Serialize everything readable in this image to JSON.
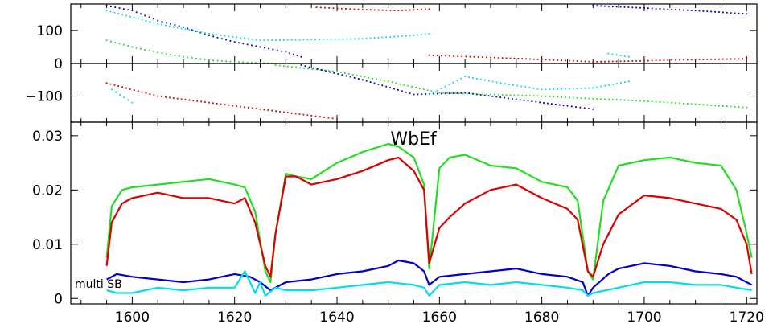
{
  "figure": {
    "title": "WbEf",
    "annotation": "multi SB"
  },
  "colors": {
    "red": "#dd0000",
    "green": "#22dd22",
    "blue": "#0000cc",
    "cyan": "#00ddee",
    "axis": "#000000"
  },
  "chart_data": [
    {
      "type": "scatter",
      "panel": "phase-upper",
      "ylim": [
        0,
        180
      ],
      "xlim": [
        1588,
        1722
      ],
      "yticks": [
        0,
        100
      ],
      "ytick_labels": [
        "0",
        "100"
      ],
      "series": [
        {
          "color": "green",
          "segments": [
            [
              [
                1595,
                70
              ],
              [
                1600,
                50
              ],
              [
                1605,
                33
              ],
              [
                1610,
                20
              ],
              [
                1615,
                10
              ],
              [
                1620,
                5
              ],
              [
                1625,
                2
              ],
              [
                1628,
                0
              ]
            ]
          ]
        },
        {
          "color": "blue",
          "segments": [
            [
              [
                1595,
                175
              ],
              [
                1600,
                160
              ],
              [
                1605,
                130
              ],
              [
                1610,
                110
              ],
              [
                1615,
                85
              ],
              [
                1620,
                65
              ],
              [
                1625,
                50
              ],
              [
                1630,
                35
              ],
              [
                1633,
                20
              ]
            ],
            [
              [
                1690,
                175
              ],
              [
                1700,
                168
              ],
              [
                1710,
                160
              ],
              [
                1720,
                150
              ]
            ]
          ]
        },
        {
          "color": "cyan",
          "segments": [
            [
              [
                1595,
                160
              ],
              [
                1605,
                120
              ],
              [
                1615,
                90
              ],
              [
                1625,
                70
              ],
              [
                1635,
                72
              ],
              [
                1645,
                75
              ],
              [
                1655,
                85
              ],
              [
                1658,
                90
              ]
            ],
            [
              [
                1693,
                30
              ],
              [
                1697,
                20
              ]
            ]
          ]
        },
        {
          "color": "red",
          "segments": [
            [
              [
                1636,
                170
              ],
              [
                1645,
                163
              ],
              [
                1652,
                160
              ],
              [
                1658,
                165
              ]
            ],
            [
              [
                1658,
                25
              ],
              [
                1670,
                18
              ],
              [
                1680,
                12
              ],
              [
                1690,
                5
              ],
              [
                1700,
                8
              ],
              [
                1710,
                12
              ],
              [
                1720,
                14
              ]
            ]
          ]
        }
      ]
    },
    {
      "type": "scatter",
      "panel": "phase-lower",
      "ylim": [
        -180,
        0
      ],
      "xlim": [
        1588,
        1722
      ],
      "yticks": [
        -100
      ],
      "ytick_labels": [
        "−100"
      ],
      "series": [
        {
          "color": "green",
          "segments": [
            [
              [
                1628,
                -5
              ],
              [
                1640,
                -25
              ],
              [
                1650,
                -55
              ],
              [
                1660,
                -90
              ],
              [
                1670,
                -95
              ],
              [
                1680,
                -100
              ],
              [
                1690,
                -108
              ],
              [
                1700,
                -115
              ],
              [
                1710,
                -125
              ],
              [
                1720,
                -135
              ]
            ]
          ]
        },
        {
          "color": "blue",
          "segments": [
            [
              [
                1633,
                -5
              ],
              [
                1645,
                -50
              ],
              [
                1655,
                -95
              ],
              [
                1665,
                -90
              ],
              [
                1675,
                -110
              ],
              [
                1685,
                -130
              ],
              [
                1690,
                -140
              ]
            ]
          ]
        },
        {
          "color": "cyan",
          "segments": [
            [
              [
                1596,
                -80
              ],
              [
                1600,
                -120
              ]
            ],
            [
              [
                1658,
                -95
              ],
              [
                1665,
                -40
              ],
              [
                1672,
                -60
              ],
              [
                1680,
                -80
              ],
              [
                1690,
                -75
              ],
              [
                1697,
                -55
              ]
            ]
          ]
        },
        {
          "color": "red",
          "segments": [
            [
              [
                1595,
                -60
              ],
              [
                1605,
                -100
              ],
              [
                1615,
                -120
              ],
              [
                1625,
                -140
              ],
              [
                1635,
                -160
              ],
              [
                1640,
                -170
              ]
            ]
          ]
        }
      ]
    },
    {
      "type": "line",
      "panel": "amplitude",
      "ylim": [
        -0.001,
        0.0325
      ],
      "xlim": [
        1588,
        1722
      ],
      "yticks": [
        0,
        0.01,
        0.02,
        0.03
      ],
      "ytick_labels": [
        "0",
        "0.01",
        "0.02",
        "0.03"
      ],
      "xticks": [
        1600,
        1620,
        1640,
        1660,
        1680,
        1700,
        1720
      ],
      "xtick_labels": [
        "1600",
        "1620",
        "1640",
        "1660",
        "1680",
        "1700",
        "1720"
      ],
      "series": [
        {
          "color": "green",
          "x": [
            1595,
            1596,
            1598,
            1600,
            1605,
            1610,
            1615,
            1620,
            1622,
            1624,
            1626,
            1627,
            1628,
            1630,
            1632,
            1635,
            1640,
            1645,
            1650,
            1652,
            1655,
            1657,
            1658,
            1660,
            1662,
            1665,
            1670,
            1675,
            1680,
            1685,
            1687,
            1689,
            1690,
            1692,
            1695,
            1700,
            1705,
            1710,
            1715,
            1718,
            1720,
            1721
          ],
          "y": [
            0.0075,
            0.017,
            0.02,
            0.0205,
            0.021,
            0.0215,
            0.022,
            0.021,
            0.0205,
            0.016,
            0.005,
            0.003,
            0.012,
            0.023,
            0.0225,
            0.022,
            0.025,
            0.027,
            0.0285,
            0.028,
            0.026,
            0.021,
            0.0055,
            0.024,
            0.026,
            0.0265,
            0.0245,
            0.024,
            0.0215,
            0.0205,
            0.018,
            0.005,
            0.0035,
            0.018,
            0.0245,
            0.0255,
            0.026,
            0.025,
            0.0245,
            0.02,
            0.012,
            0.0075
          ]
        },
        {
          "color": "red",
          "x": [
            1595,
            1596,
            1598,
            1600,
            1605,
            1610,
            1615,
            1620,
            1622,
            1624,
            1626,
            1627,
            1628,
            1630,
            1632,
            1635,
            1640,
            1645,
            1650,
            1652,
            1655,
            1657,
            1658,
            1660,
            1662,
            1665,
            1670,
            1675,
            1680,
            1685,
            1687,
            1689,
            1690,
            1692,
            1695,
            1700,
            1705,
            1710,
            1715,
            1718,
            1720,
            1721
          ],
          "y": [
            0.006,
            0.014,
            0.0175,
            0.0185,
            0.0195,
            0.0185,
            0.0185,
            0.0175,
            0.0185,
            0.014,
            0.006,
            0.004,
            0.012,
            0.0225,
            0.0225,
            0.021,
            0.022,
            0.0235,
            0.0255,
            0.026,
            0.0235,
            0.02,
            0.0065,
            0.013,
            0.015,
            0.0175,
            0.02,
            0.021,
            0.0185,
            0.0165,
            0.0145,
            0.005,
            0.004,
            0.01,
            0.0155,
            0.019,
            0.0185,
            0.0175,
            0.0165,
            0.0145,
            0.01,
            0.0045
          ]
        },
        {
          "color": "blue",
          "x": [
            1595,
            1597,
            1600,
            1605,
            1610,
            1615,
            1620,
            1623,
            1625,
            1627,
            1630,
            1635,
            1640,
            1645,
            1650,
            1652,
            1655,
            1657,
            1658,
            1660,
            1665,
            1670,
            1675,
            1680,
            1685,
            1688,
            1689,
            1690,
            1693,
            1695,
            1700,
            1705,
            1710,
            1715,
            1718,
            1721
          ],
          "y": [
            0.0035,
            0.0045,
            0.004,
            0.0035,
            0.003,
            0.0035,
            0.0045,
            0.004,
            0.003,
            0.0015,
            0.003,
            0.0035,
            0.0045,
            0.005,
            0.006,
            0.007,
            0.0065,
            0.005,
            0.0025,
            0.004,
            0.0045,
            0.005,
            0.0055,
            0.0045,
            0.004,
            0.003,
            0.0005,
            0.002,
            0.0045,
            0.0055,
            0.0065,
            0.006,
            0.005,
            0.0045,
            0.004,
            0.0025
          ]
        },
        {
          "color": "cyan",
          "x": [
            1595,
            1597,
            1600,
            1605,
            1610,
            1615,
            1620,
            1622,
            1624,
            1625,
            1626,
            1628,
            1630,
            1635,
            1640,
            1645,
            1650,
            1655,
            1657,
            1658,
            1660,
            1665,
            1670,
            1675,
            1680,
            1685,
            1688,
            1689,
            1690,
            1695,
            1700,
            1705,
            1710,
            1715,
            1718,
            1721
          ],
          "y": [
            0.0015,
            0.001,
            0.001,
            0.002,
            0.0015,
            0.002,
            0.002,
            0.005,
            0.001,
            0.003,
            0.0005,
            0.002,
            0.0015,
            0.0015,
            0.002,
            0.0025,
            0.003,
            0.0025,
            0.002,
            0.0005,
            0.0025,
            0.003,
            0.0025,
            0.003,
            0.0025,
            0.002,
            0.0015,
            0.0005,
            0.001,
            0.002,
            0.003,
            0.003,
            0.0025,
            0.0025,
            0.002,
            0.0015
          ]
        }
      ]
    }
  ]
}
